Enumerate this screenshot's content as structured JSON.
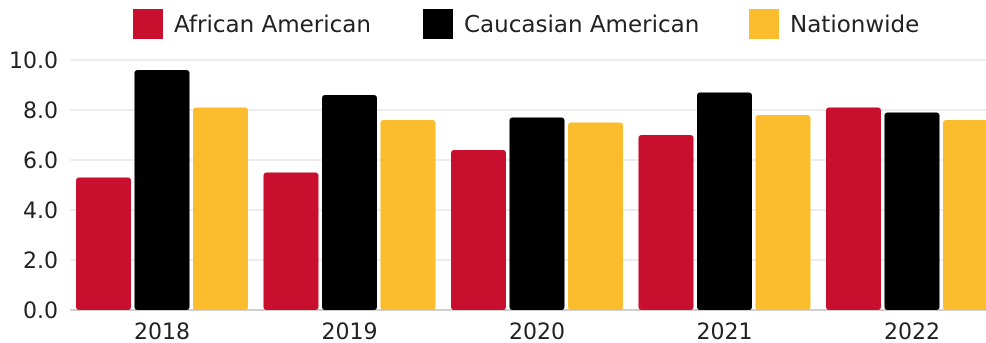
{
  "chart_data": {
    "type": "bar",
    "title": "",
    "xlabel": "",
    "ylabel": "",
    "categories": [
      "2018",
      "2019",
      "2020",
      "2021",
      "2022"
    ],
    "series": [
      {
        "name": "African American",
        "color": "#c8102e",
        "values": [
          5.3,
          5.5,
          6.4,
          7.0,
          8.1
        ]
      },
      {
        "name": "Caucasian American",
        "color": "#000000",
        "values": [
          9.6,
          8.6,
          7.7,
          8.7,
          7.9
        ]
      },
      {
        "name": "Nationwide",
        "color": "#fbbd2e",
        "values": [
          8.1,
          7.6,
          7.5,
          7.8,
          7.6
        ]
      }
    ],
    "ylim": [
      0,
      10
    ],
    "yticks": [
      "0.0",
      "2.0",
      "4.0",
      "6.0",
      "8.0",
      "10.0"
    ],
    "grid": true,
    "legend_position": "top"
  }
}
